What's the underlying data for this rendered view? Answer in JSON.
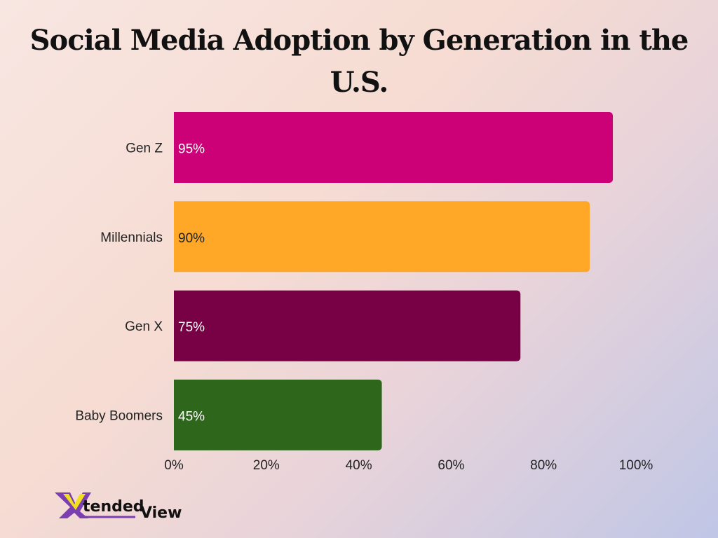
{
  "chart_data": {
    "type": "bar",
    "orientation": "horizontal",
    "title": "Social Media Adoption by Generation in the U.S.",
    "categories": [
      "Gen Z",
      "Millennials",
      "Gen X",
      "Baby Boomers"
    ],
    "values": [
      95,
      90,
      75,
      45
    ],
    "data_labels": [
      "95%",
      "90%",
      "75%",
      "45%"
    ],
    "colors": [
      "#cc0077",
      "#ffa726",
      "#780045",
      "#2e661c"
    ],
    "label_colors": [
      "#ffffff",
      "#222222",
      "#ffffff",
      "#ffffff"
    ],
    "xlim": [
      0,
      100
    ],
    "xticks": [
      0,
      20,
      40,
      60,
      80,
      100
    ],
    "xtick_labels": [
      "0%",
      "20%",
      "40%",
      "60%",
      "80%",
      "100%"
    ],
    "grid": false,
    "legend": "none"
  },
  "branding": {
    "logo_text": "XtendedView"
  }
}
